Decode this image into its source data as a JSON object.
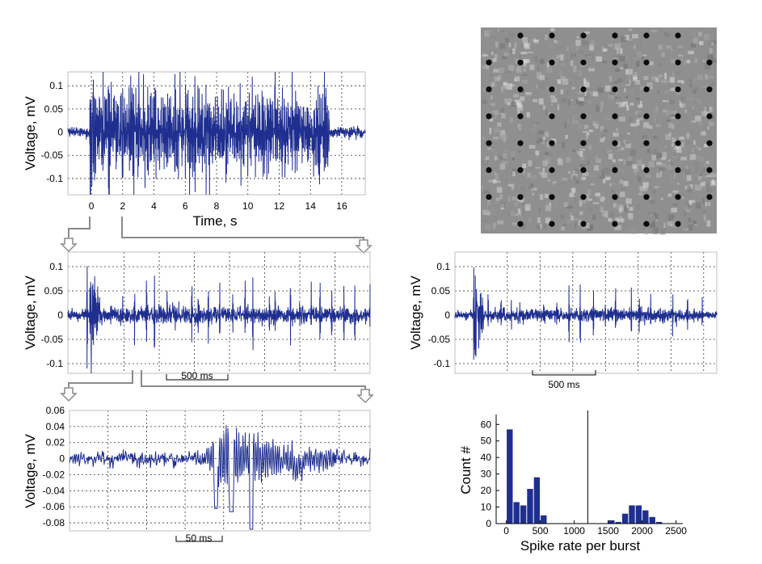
{
  "chart_data": [
    {
      "id": "p1",
      "type": "line",
      "ylabel": "Voltage, mV",
      "xlabel": "Time, s",
      "xlim": [
        -1.5,
        17.5
      ],
      "ylim": [
        -0.135,
        0.13
      ],
      "xticks": [
        0,
        2,
        4,
        6,
        8,
        10,
        12,
        14,
        16
      ],
      "yticks": [
        -0.1,
        -0.05,
        0,
        0.05,
        0.1
      ],
      "ytick_labels": [
        "-0.1",
        "-0.05",
        "0",
        "0.05",
        "0.1"
      ],
      "grid": true,
      "color": "#1f2f8f",
      "signal": {
        "t_start": -1.5,
        "t_end": 17.5,
        "burst_start": -0.05,
        "burst_end": 15.2,
        "noise": 0.006,
        "num_bursts": 150,
        "first_amp": 0.13,
        "amp_max": 0.11,
        "amp_min": 0.045,
        "density": 1.0
      }
    },
    {
      "id": "p2",
      "type": "line",
      "ylabel": "Voltage, mV",
      "xlim": [
        -0.15,
        2.0
      ],
      "ylim": [
        -0.12,
        0.13
      ],
      "xticks": [
        0.25,
        0.5,
        0.75,
        1.0,
        1.25,
        1.5,
        1.75
      ],
      "yticks": [
        -0.1,
        -0.05,
        0,
        0.05,
        0.1
      ],
      "ytick_labels": [
        "-0.1",
        "-0.05",
        "0",
        "0.05",
        "0.1"
      ],
      "grid": true,
      "scale_bar": "500 ms",
      "color": "#1f2f8f",
      "signal": {
        "t_start": -0.15,
        "t_end": 2.0,
        "burst_start": 0.0,
        "burst_end": 1.98,
        "noise": 0.005,
        "num_bursts": 26,
        "first_amp": 0.12,
        "amp_max": 0.09,
        "amp_min": 0.03,
        "density": 0.0
      }
    },
    {
      "id": "p3",
      "type": "line",
      "ylabel": "Voltage, mV",
      "xlim": [
        0,
        195
      ],
      "ylim": [
        -0.09,
        0.06
      ],
      "yticks": [
        -0.08,
        -0.06,
        -0.04,
        -0.02,
        0,
        0.02,
        0.04,
        0.06
      ],
      "ytick_labels": [
        "-0.08",
        "-0.06",
        "-0.04",
        "-0.02",
        "0",
        "0.02",
        "0.04",
        "0.06"
      ],
      "xticks": [
        25,
        50,
        75,
        100,
        125,
        150,
        175
      ],
      "grid": true,
      "scale_bar": "50 ms",
      "color": "#1f2f8f",
      "signal": {
        "t_start": 0,
        "t_end": 195,
        "burst_center": 100,
        "noise": 0.005,
        "first_amp": 0.0,
        "density": 0.0
      }
    },
    {
      "id": "p4",
      "type": "line",
      "ylabel": "Voltage, mV",
      "xlim": [
        -0.15,
        1.85
      ],
      "ylim": [
        -0.12,
        0.13
      ],
      "xticks": [
        0.25,
        0.5,
        0.75,
        1.0,
        1.25,
        1.5,
        1.75
      ],
      "yticks": [
        -0.1,
        -0.05,
        0,
        0.05,
        0.1
      ],
      "ytick_labels": [
        "-0.1",
        "-0.05",
        "0",
        "0.05",
        "0.1"
      ],
      "grid": true,
      "scale_bar": "500 ms",
      "color": "#1f2f8f",
      "signal": {
        "t_start": -0.15,
        "t_end": 1.85,
        "burst_start": 0.0,
        "burst_end": 1.72,
        "noise": 0.004,
        "num_bursts": 20,
        "first_amp": 0.12,
        "amp_max": 0.07,
        "amp_min": 0.02,
        "density": 0.0
      }
    },
    {
      "id": "p5",
      "type": "bar",
      "xlabel": "Spike rate per burst",
      "ylabel": "Count #",
      "xlim": [
        -150,
        2600
      ],
      "ylim": [
        0,
        66
      ],
      "xticks": [
        0,
        500,
        1000,
        1500,
        2000,
        2500
      ],
      "yticks": [
        0,
        10,
        20,
        30,
        40,
        50,
        60
      ],
      "grid": false,
      "bin_width": 100,
      "bins": [
        0,
        100,
        200,
        300,
        400,
        500,
        1500,
        1600,
        1700,
        1800,
        1900,
        2000,
        2100,
        2200
      ],
      "values": [
        57,
        13,
        11,
        21,
        28,
        5,
        2,
        1,
        6,
        11,
        11,
        8,
        4,
        1
      ],
      "divider_x": 1200,
      "color": "#1f2f8f"
    }
  ],
  "image": {
    "description": "electrode-array-micrograph",
    "rows": 8,
    "cols": 8
  }
}
